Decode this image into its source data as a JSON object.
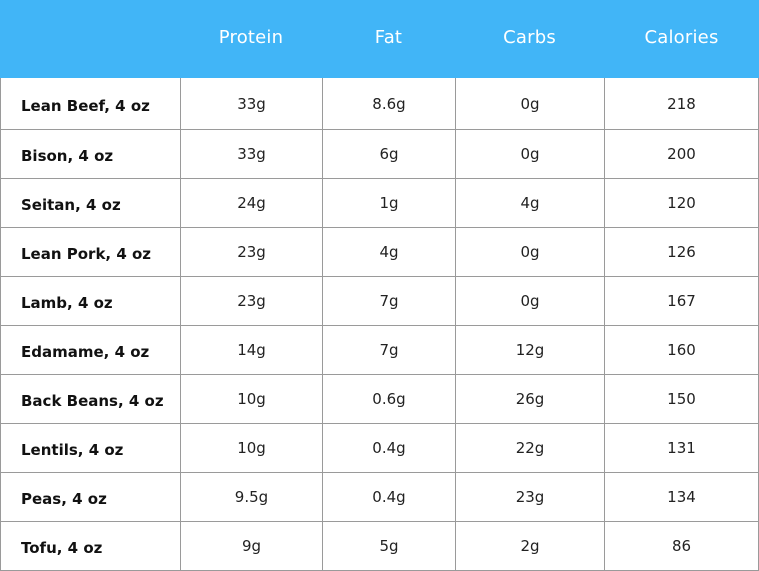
{
  "table": {
    "headers": [
      "",
      "Protein",
      "Fat",
      "Carbs",
      "Calories"
    ],
    "rows": [
      [
        "Lean Beef, 4 oz",
        "33g",
        "8.6g",
        "0g",
        "218"
      ],
      [
        "Bison, 4 oz",
        "33g",
        "6g",
        "0g",
        "200"
      ],
      [
        "Seitan, 4 oz",
        "24g",
        "1g",
        "4g",
        "120"
      ],
      [
        "Lean Pork, 4 oz",
        "23g",
        "4g",
        "0g",
        "126"
      ],
      [
        "Lamb, 4 oz",
        "23g",
        "7g",
        "0g",
        "167"
      ],
      [
        "Edamame, 4 oz",
        "14g",
        "7g",
        "12g",
        "160"
      ],
      [
        "Back Beans, 4 oz",
        "10g",
        "0.6g",
        "26g",
        "150"
      ],
      [
        "Lentils, 4 oz",
        "10g",
        "0.4g",
        "22g",
        "131"
      ],
      [
        "Peas, 4 oz",
        "9.5g",
        "0.4g",
        "23g",
        "134"
      ],
      [
        "Tofu, 4 oz",
        "9g",
        "5g",
        "2g",
        "86"
      ]
    ]
  },
  "colors": {
    "header_background": "#41b5f7",
    "header_text": "#ffffff",
    "grid_lines": "#9a9a9a",
    "body_text": "#222222"
  }
}
